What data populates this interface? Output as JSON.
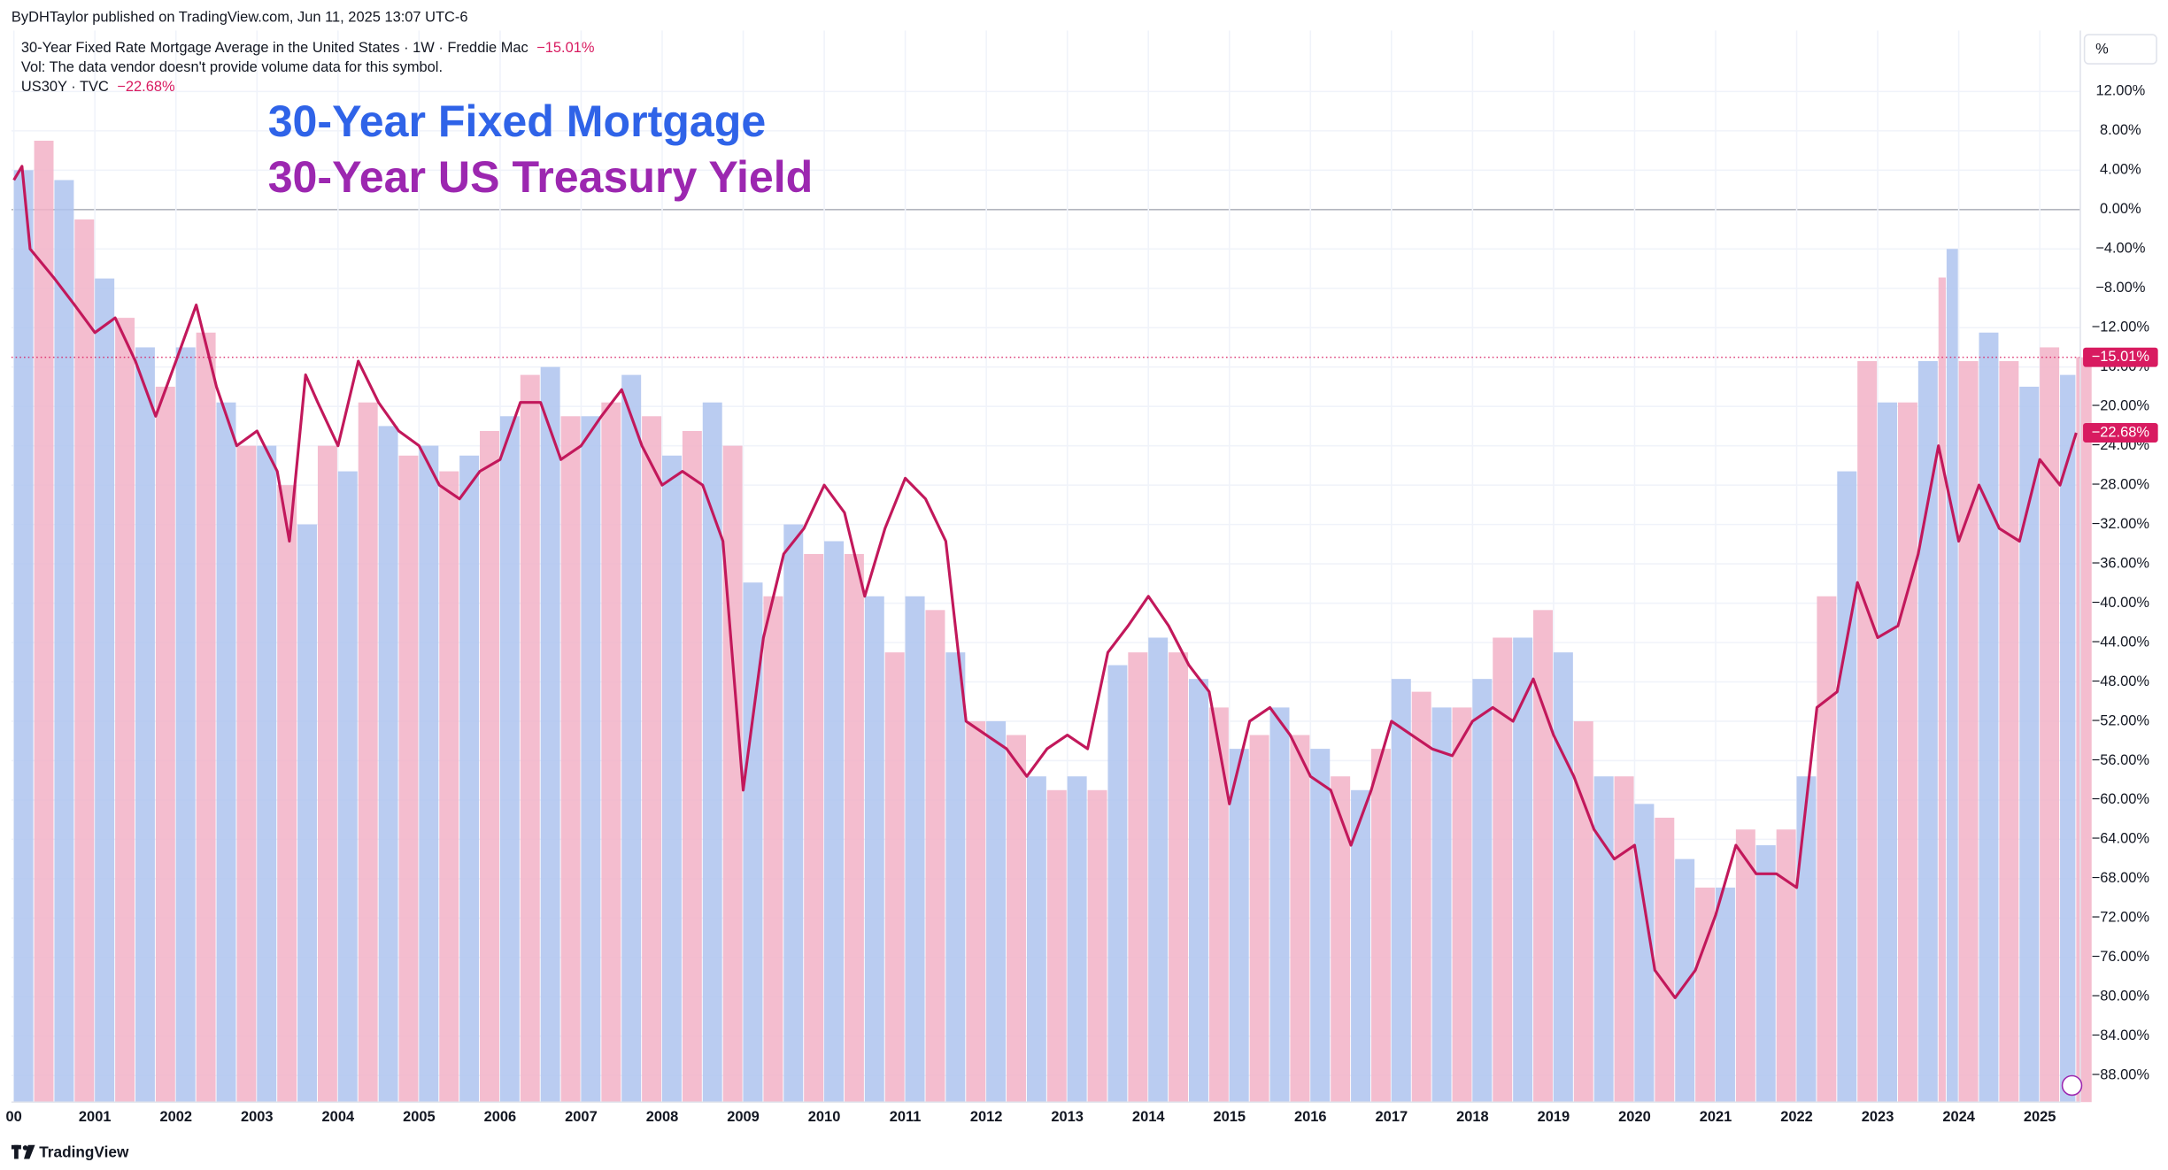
{
  "header": {
    "published": "ByDHTaylor published on TradingView.com, Jun 11, 2025 13:07 UTC-6",
    "legend": [
      {
        "text": "30-Year Fixed Rate Mortgage Average in the United States · 1W · Freddie Mac"
      },
      {
        "text": "Vol: The data vendor doesn't provide volume data for this symbol."
      },
      {
        "text": "US30Y · TVC"
      }
    ],
    "unit_button": "%",
    "footer": "TradingView"
  },
  "chart_data": {
    "type": "combo",
    "annotations": [
      {
        "text": "30-Year Fixed Mortgage",
        "color": "#2f63e8"
      },
      {
        "text": "30-Year US Treasury Yield",
        "color": "#9c27b0"
      }
    ],
    "xlim": [
      1999.97,
      2025.5
    ],
    "xticks": [
      {
        "value": 2000,
        "label": "00"
      },
      2001,
      2002,
      2003,
      2004,
      2005,
      2006,
      2007,
      2008,
      2009,
      2010,
      2011,
      2012,
      2013,
      2014,
      2015,
      2016,
      2017,
      2018,
      2019,
      2020,
      2021,
      2022,
      2023,
      2024,
      2025
    ],
    "ylim": [
      -90.7,
      18.2
    ],
    "yticks": [
      {
        "value": 12,
        "label": "12.00%"
      },
      {
        "value": 8,
        "label": "8.00%"
      },
      {
        "value": 4,
        "label": "4.00%"
      },
      {
        "value": 0,
        "label": "0.00%"
      },
      {
        "value": -4,
        "label": "−4.00%"
      },
      {
        "value": -8,
        "label": "−8.00%"
      },
      {
        "value": -12,
        "label": "−12.00%"
      },
      {
        "value": -16,
        "label": "−16.00%"
      },
      {
        "value": -20,
        "label": "−20.00%"
      },
      {
        "value": -24,
        "label": "−24.00%"
      },
      {
        "value": -28,
        "label": "−28.00%"
      },
      {
        "value": -32,
        "label": "−32.00%"
      },
      {
        "value": -36,
        "label": "−36.00%"
      },
      {
        "value": -40,
        "label": "−40.00%"
      },
      {
        "value": -44,
        "label": "−44.00%"
      },
      {
        "value": -48,
        "label": "−48.00%"
      },
      {
        "value": -52,
        "label": "−52.00%"
      },
      {
        "value": -56,
        "label": "−56.00%"
      },
      {
        "value": -60,
        "label": "−60.00%"
      },
      {
        "value": -64,
        "label": "−64.00%"
      },
      {
        "value": -68,
        "label": "−68.00%"
      },
      {
        "value": -72,
        "label": "−72.00%"
      },
      {
        "value": -76,
        "label": "−76.00%"
      },
      {
        "value": -80,
        "label": "−80.00%"
      },
      {
        "value": -84,
        "label": "−84.00%"
      },
      {
        "value": -88,
        "label": "−88.00%"
      }
    ],
    "grid": true,
    "series": [
      {
        "name": "30-Year Fixed Rate Mortgage Average in the United States",
        "type": "column",
        "colors": [
          "#aec3ef",
          "#f2b2c7"
        ],
        "tag_color": "#d81b60",
        "last_value": -15.01,
        "last_value_label": "−15.01%",
        "x": [
          2000.0,
          2000.25,
          2000.5,
          2000.75,
          2001.0,
          2001.25,
          2001.5,
          2001.75,
          2002.0,
          2002.25,
          2002.5,
          2002.75,
          2003.0,
          2003.25,
          2003.5,
          2003.75,
          2004.0,
          2004.25,
          2004.5,
          2004.75,
          2005.0,
          2005.25,
          2005.5,
          2005.75,
          2006.0,
          2006.25,
          2006.5,
          2006.75,
          2007.0,
          2007.25,
          2007.5,
          2007.75,
          2008.0,
          2008.25,
          2008.5,
          2008.75,
          2009.0,
          2009.25,
          2009.5,
          2009.75,
          2010.0,
          2010.25,
          2010.5,
          2010.75,
          2011.0,
          2011.25,
          2011.5,
          2011.75,
          2012.0,
          2012.25,
          2012.5,
          2012.75,
          2013.0,
          2013.25,
          2013.5,
          2013.75,
          2014.0,
          2014.25,
          2014.5,
          2014.75,
          2015.0,
          2015.25,
          2015.5,
          2015.75,
          2016.0,
          2016.25,
          2016.5,
          2016.75,
          2017.0,
          2017.25,
          2017.5,
          2017.75,
          2018.0,
          2018.25,
          2018.5,
          2018.75,
          2019.0,
          2019.25,
          2019.5,
          2019.75,
          2020.0,
          2020.25,
          2020.5,
          2020.75,
          2021.0,
          2021.25,
          2021.5,
          2021.75,
          2022.0,
          2022.25,
          2022.5,
          2022.75,
          2023.0,
          2023.25,
          2023.5,
          2023.75,
          2023.85,
          2024.0,
          2024.25,
          2024.5,
          2024.75,
          2025.0,
          2025.25,
          2025.45
        ],
        "values": [
          4,
          7,
          3,
          -1,
          -7,
          -11,
          -14,
          -18,
          -14,
          -12.5,
          -19.6,
          -24,
          -24,
          -28,
          -32,
          -24,
          -26.6,
          -19.6,
          -22,
          -25,
          -24,
          -26.6,
          -25,
          -22.5,
          -21,
          -16.8,
          -16,
          -21,
          -21,
          -19.6,
          -16.8,
          -21,
          -25,
          -22.5,
          -19.6,
          -24,
          -37.9,
          -39.3,
          -32,
          -35,
          -33.7,
          -35,
          -39.3,
          -45,
          -39.3,
          -40.7,
          -45,
          -52,
          -52,
          -53.4,
          -57.6,
          -59,
          -57.6,
          -59,
          -46.3,
          -45,
          -43.5,
          -45,
          -47.7,
          -50.6,
          -54.8,
          -53.4,
          -50.6,
          -53.4,
          -54.8,
          -57.6,
          -59,
          -54.8,
          -47.7,
          -49,
          -50.6,
          -50.6,
          -47.7,
          -43.5,
          -43.5,
          -40.7,
          -45,
          -52,
          -57.6,
          -57.6,
          -60.4,
          -61.8,
          -66,
          -68.9,
          -68.9,
          -63,
          -64.6,
          -63,
          -57.6,
          -39.3,
          -26.6,
          -15.4,
          -19.6,
          -19.6,
          -15.4,
          -6.9,
          -4,
          -15.4,
          -12.5,
          -15.4,
          -18,
          -14,
          -16.8,
          -15.01
        ]
      },
      {
        "name": "US30Y",
        "type": "line",
        "color": "#c2185b",
        "tag_color": "#d81b60",
        "last_value": -22.68,
        "last_value_label": "−22.68%",
        "x": [
          2000.0,
          2000.1,
          2000.2,
          2000.5,
          2000.75,
          2001.0,
          2001.25,
          2001.5,
          2001.75,
          2002.0,
          2002.25,
          2002.5,
          2002.75,
          2003.0,
          2003.25,
          2003.4,
          2003.6,
          2003.75,
          2004.0,
          2004.25,
          2004.5,
          2004.75,
          2005.0,
          2005.25,
          2005.5,
          2005.75,
          2006.0,
          2006.25,
          2006.5,
          2006.75,
          2007.0,
          2007.25,
          2007.5,
          2007.75,
          2008.0,
          2008.25,
          2008.5,
          2008.75,
          2009.0,
          2009.25,
          2009.5,
          2009.75,
          2010.0,
          2010.25,
          2010.5,
          2010.75,
          2011.0,
          2011.25,
          2011.5,
          2011.75,
          2012.0,
          2012.25,
          2012.5,
          2012.75,
          2013.0,
          2013.25,
          2013.5,
          2013.75,
          2014.0,
          2014.25,
          2014.5,
          2014.75,
          2015.0,
          2015.25,
          2015.5,
          2015.75,
          2016.0,
          2016.25,
          2016.5,
          2016.75,
          2017.0,
          2017.25,
          2017.5,
          2017.75,
          2018.0,
          2018.25,
          2018.5,
          2018.75,
          2019.0,
          2019.25,
          2019.5,
          2019.75,
          2020.0,
          2020.25,
          2020.5,
          2020.75,
          2021.0,
          2021.25,
          2021.5,
          2021.75,
          2022.0,
          2022.25,
          2022.5,
          2022.75,
          2023.0,
          2023.25,
          2023.5,
          2023.75,
          2024.0,
          2024.25,
          2024.5,
          2024.75,
          2025.0,
          2025.25,
          2025.45
        ],
        "values": [
          3,
          4.4,
          -4,
          -7,
          -9.7,
          -12.5,
          -11,
          -15.4,
          -21,
          -15.4,
          -9.7,
          -18,
          -24,
          -22.5,
          -26.6,
          -33.7,
          -16.8,
          -19.6,
          -24,
          -15.4,
          -19.6,
          -22.5,
          -24,
          -28,
          -29.4,
          -26.6,
          -25.4,
          -19.6,
          -19.6,
          -25.4,
          -24,
          -21,
          -18.3,
          -24,
          -28,
          -26.6,
          -28,
          -33.7,
          -59,
          -43.5,
          -35,
          -32.4,
          -28,
          -30.8,
          -39.3,
          -32.4,
          -27.3,
          -29.4,
          -33.7,
          -52,
          -53.4,
          -54.8,
          -57.6,
          -54.8,
          -53.4,
          -54.8,
          -45,
          -42.3,
          -39.3,
          -42.3,
          -46.3,
          -49,
          -60.4,
          -52,
          -50.6,
          -53.4,
          -57.6,
          -59,
          -64.6,
          -59,
          -52,
          -53.4,
          -54.8,
          -55.5,
          -52,
          -50.6,
          -52,
          -47.7,
          -53.4,
          -57.6,
          -63,
          -66,
          -64.6,
          -77.3,
          -80.1,
          -77.3,
          -71.7,
          -64.6,
          -67.5,
          -67.5,
          -68.9,
          -50.6,
          -49,
          -37.9,
          -43.5,
          -42.3,
          -35,
          -24,
          -33.7,
          -28,
          -32.4,
          -33.7,
          -25.4,
          -28,
          -22.68
        ]
      }
    ]
  }
}
